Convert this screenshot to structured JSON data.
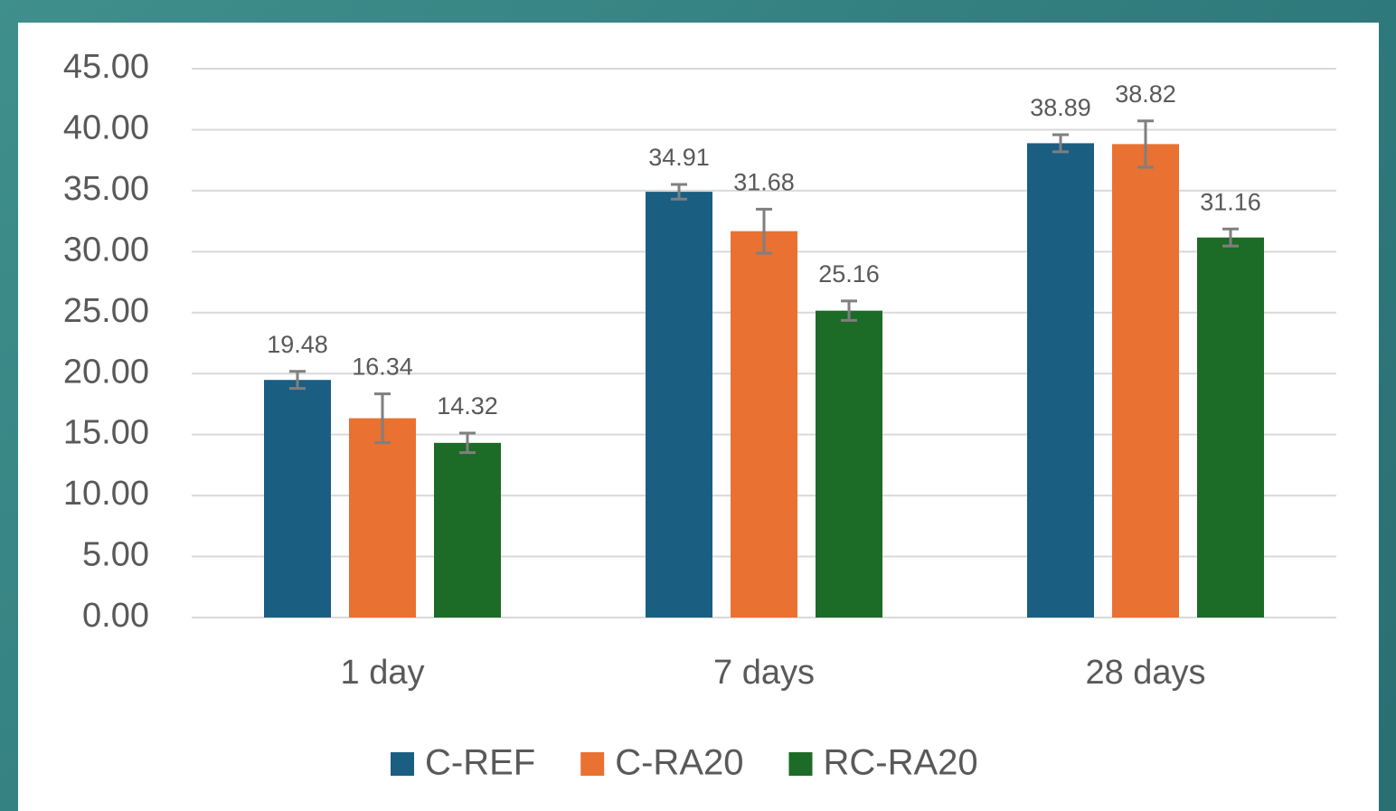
{
  "chart_data": {
    "type": "bar",
    "categories": [
      "1 day",
      "7 days",
      "28 days"
    ],
    "series": [
      {
        "name": "C-REF",
        "color": "#1a5e82",
        "values": [
          19.48,
          34.91,
          38.89
        ],
        "errors": [
          0.7,
          0.6,
          0.7
        ]
      },
      {
        "name": "C-RA20",
        "color": "#e97132",
        "values": [
          16.34,
          31.68,
          38.82
        ],
        "errors": [
          2.0,
          1.8,
          1.9
        ]
      },
      {
        "name": "RC-RA20",
        "color": "#1c6b26",
        "values": [
          14.32,
          25.16,
          31.16
        ],
        "errors": [
          0.8,
          0.8,
          0.7
        ]
      }
    ],
    "ylim": [
      0,
      45
    ],
    "yticks": [
      {
        "value": 0,
        "label": "0.00"
      },
      {
        "value": 5,
        "label": "5.00"
      },
      {
        "value": 10,
        "label": "10.00"
      },
      {
        "value": 15,
        "label": "15.00"
      },
      {
        "value": 20,
        "label": "20.00"
      },
      {
        "value": 25,
        "label": "25.00"
      },
      {
        "value": 30,
        "label": "30.00"
      },
      {
        "value": 35,
        "label": "35.00"
      },
      {
        "value": 40,
        "label": "40.00"
      },
      {
        "value": 45,
        "label": "45.00"
      }
    ],
    "grid": true,
    "legend": "bottom"
  }
}
